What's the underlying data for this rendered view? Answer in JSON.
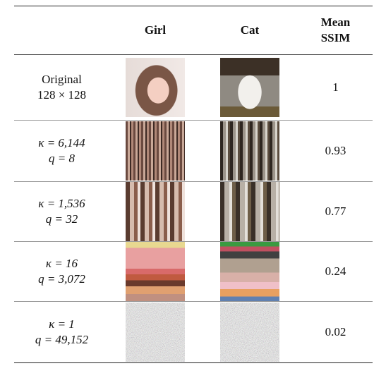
{
  "header": {
    "columns": [
      "Girl",
      "Cat"
    ],
    "ssim": [
      "Mean",
      "SSIM"
    ]
  },
  "rows": [
    {
      "label": [
        "Original",
        "128 × 128"
      ],
      "ssim": "1"
    },
    {
      "label": [
        "κ = 6,144",
        "q = 8"
      ],
      "ssim": "0.93"
    },
    {
      "label": [
        "κ = 1,536",
        "q = 32"
      ],
      "ssim": "0.77"
    },
    {
      "label": [
        "κ = 16",
        "q = 3,072"
      ],
      "ssim": "0.24"
    },
    {
      "label": [
        "κ = 1",
        "q = 49,152"
      ],
      "ssim": "0.02"
    }
  ]
}
